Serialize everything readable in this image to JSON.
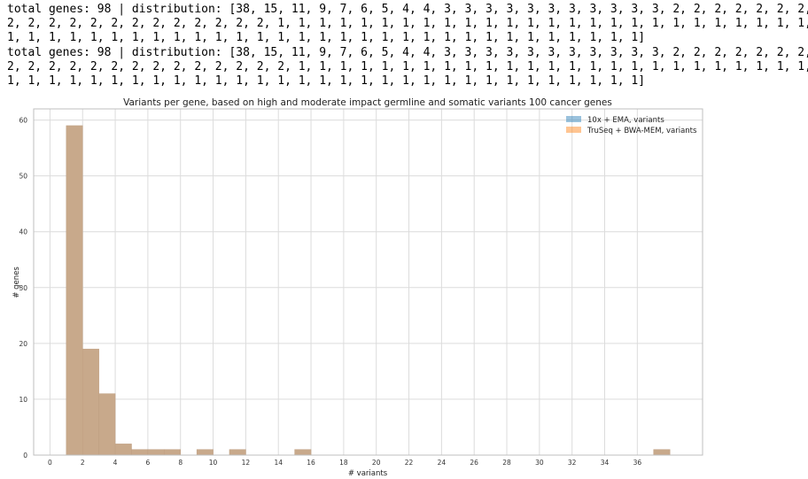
{
  "output": {
    "lines": [
      "total genes: 98 | distribution: [38, 15, 11, 9, 7, 6, 5, 4, 4, 3, 3, 3, 3, 3, 3, 3, 3, 3, 3, 3, 2, 2, 2, 2, 2, 2, 2,",
      "2, 2, 2, 2, 2, 2, 2, 2, 2, 2, 2, 2, 2, 1, 1, 1, 1, 1, 1, 1, 1, 1, 1, 1, 1, 1, 1, 1, 1, 1, 1, 1, 1, 1, 1, 1, 1, 1, 1,",
      "1, 1, 1, 1, 1, 1, 1, 1, 1, 1, 1, 1, 1, 1, 1, 1, 1, 1, 1, 1, 1, 1, 1, 1, 1, 1, 1, 1, 1, 1, 1]",
      "total genes: 98 | distribution: [38, 15, 11, 9, 7, 6, 5, 4, 4, 3, 3, 3, 3, 3, 3, 3, 3, 3, 3, 3, 2, 2, 2, 2, 2, 2, 2,",
      "2, 2, 2, 2, 2, 2, 2, 2, 2, 2, 2, 2, 2, 2, 1, 1, 1, 1, 1, 1, 1, 1, 1, 1, 1, 1, 1, 1, 1, 1, 1, 1, 1, 1, 1, 1, 1, 1, 1,",
      "1, 1, 1, 1, 1, 1, 1, 1, 1, 1, 1, 1, 1, 1, 1, 1, 1, 1, 1, 1, 1, 1, 1, 1, 1, 1, 1, 1, 1, 1, 1]"
    ]
  },
  "chart_data": {
    "type": "bar",
    "title": "Variants per gene, based on high and moderate impact germline and somatic variants 100 cancer genes",
    "xlabel": "# variants",
    "ylabel": "# genes",
    "xlim": [
      -1,
      40
    ],
    "ylim": [
      0,
      62
    ],
    "xticks": [
      0,
      2,
      4,
      6,
      8,
      10,
      12,
      14,
      16,
      18,
      20,
      22,
      24,
      26,
      28,
      30,
      32,
      34,
      36
    ],
    "yticks": [
      0,
      10,
      20,
      30,
      40,
      50,
      60
    ],
    "grid": true,
    "legend_position": "top-right",
    "bins": [
      {
        "x0": 1,
        "x1": 2,
        "value": 59
      },
      {
        "x0": 2,
        "x1": 3,
        "value": 19
      },
      {
        "x0": 3,
        "x1": 4,
        "value": 11
      },
      {
        "x0": 4,
        "x1": 5,
        "value": 2
      },
      {
        "x0": 5,
        "x1": 6,
        "value": 1
      },
      {
        "x0": 6,
        "x1": 7,
        "value": 1
      },
      {
        "x0": 7,
        "x1": 8,
        "value": 1
      },
      {
        "x0": 9,
        "x1": 10,
        "value": 1
      },
      {
        "x0": 11,
        "x1": 12,
        "value": 1
      },
      {
        "x0": 15,
        "x1": 16,
        "value": 1
      },
      {
        "x0": 37,
        "x1": 38,
        "value": 1
      }
    ],
    "series": [
      {
        "name": "10x + EMA, variants",
        "color": "#1f77b4"
      },
      {
        "name": "TruSeq + BWA-MEM, variants",
        "color": "#ff7f0e"
      }
    ],
    "overlap_color": "#c8a98b"
  }
}
